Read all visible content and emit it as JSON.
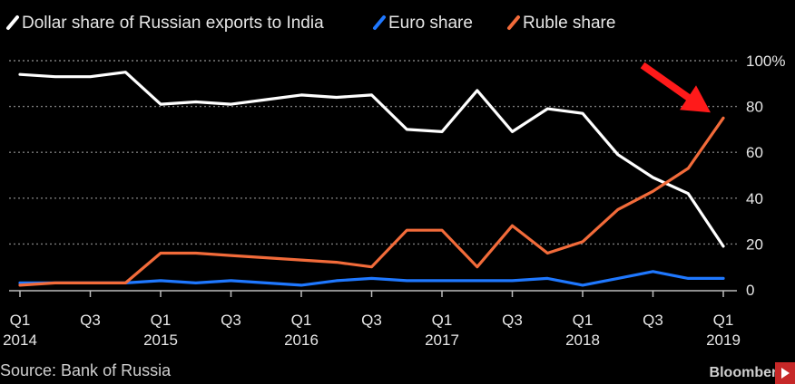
{
  "chart_data": {
    "type": "line",
    "categories": [
      "Q1 2014",
      "Q2 2014",
      "Q3 2014",
      "Q4 2014",
      "Q1 2015",
      "Q2 2015",
      "Q3 2015",
      "Q4 2015",
      "Q1 2016",
      "Q2 2016",
      "Q3 2016",
      "Q4 2016",
      "Q1 2017",
      "Q2 2017",
      "Q3 2017",
      "Q4 2017",
      "Q1 2018",
      "Q2 2018",
      "Q3 2018",
      "Q4 2018",
      "Q1 2019"
    ],
    "x_tick_labels": [
      {
        "quarter": "Q1",
        "year": "2014",
        "index": 0
      },
      {
        "quarter": "Q3",
        "year": "",
        "index": 2
      },
      {
        "quarter": "Q1",
        "year": "2015",
        "index": 4
      },
      {
        "quarter": "Q3",
        "year": "",
        "index": 6
      },
      {
        "quarter": "Q1",
        "year": "2016",
        "index": 8
      },
      {
        "quarter": "Q3",
        "year": "",
        "index": 10
      },
      {
        "quarter": "Q1",
        "year": "2017",
        "index": 12
      },
      {
        "quarter": "Q3",
        "year": "",
        "index": 14
      },
      {
        "quarter": "Q1",
        "year": "2018",
        "index": 16
      },
      {
        "quarter": "Q3",
        "year": "",
        "index": 18
      },
      {
        "quarter": "Q1",
        "year": "2019",
        "index": 20
      }
    ],
    "y_ticks": [
      {
        "value": 0,
        "label": "0"
      },
      {
        "value": 20,
        "label": "20"
      },
      {
        "value": 40,
        "label": "40"
      },
      {
        "value": 60,
        "label": "60"
      },
      {
        "value": 80,
        "label": "80"
      },
      {
        "value": 100,
        "label": "100%"
      }
    ],
    "ylim": [
      0,
      100
    ],
    "grid": "horizontal dotted",
    "legend_placement": "top",
    "series": [
      {
        "name": "Dollar share of Russian exports to India",
        "color": "#ffffff",
        "values": [
          94,
          93,
          93,
          95,
          81,
          82,
          81,
          83,
          85,
          84,
          85,
          70,
          69,
          87,
          69,
          79,
          77,
          59,
          49,
          42,
          19
        ]
      },
      {
        "name": "Euro share",
        "color": "#1f78ff",
        "values": [
          3,
          3,
          3,
          3,
          4,
          3,
          4,
          3,
          2,
          4,
          5,
          4,
          4,
          4,
          4,
          5,
          2,
          5,
          8,
          5,
          5
        ]
      },
      {
        "name": "Ruble share",
        "color": "#f26b3a",
        "values": [
          2,
          3,
          3,
          3,
          16,
          16,
          15,
          14,
          13,
          12,
          10,
          26,
          26,
          10,
          28,
          16,
          21,
          35,
          43,
          53,
          75
        ]
      }
    ],
    "annotation": {
      "type": "arrow",
      "color": "#ff1a1a",
      "points_to": {
        "series": "Ruble share",
        "index": 20
      }
    }
  },
  "source": "Source: Bank of Russia",
  "brand": "Bloomberg"
}
